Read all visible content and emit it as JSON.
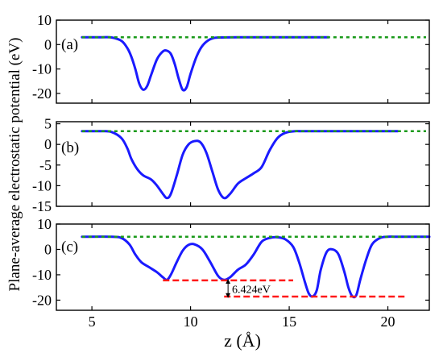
{
  "chart_data": {
    "type": "line",
    "shared_xlabel": "z (Å)",
    "shared_ylabel": "Plane-average electrostatic potential (eV)",
    "xlim": [
      3.2,
      22.1
    ],
    "xticks": [
      5,
      10,
      15,
      20
    ],
    "xtick_labels": [
      "5",
      "10",
      "15",
      "20"
    ],
    "colors": {
      "curve": "#1a1aff",
      "vacuum_level": "#1a9a1a",
      "reference_lines": "#ff1a1a"
    },
    "panels": [
      {
        "label": "(a)",
        "ylim": [
          -24,
          10
        ],
        "yticks": [
          10,
          0,
          -10,
          -20
        ],
        "ytick_labels": [
          "10",
          "0",
          "-10",
          "-20"
        ],
        "vacuum_level": 3.0,
        "series": {
          "x": [
            4.5,
            5.5,
            6.0,
            6.5,
            6.8,
            7.0,
            7.2,
            7.4,
            7.6,
            7.8,
            8.0,
            8.3,
            8.6,
            8.8,
            9.0,
            9.2,
            9.4,
            9.6,
            9.8,
            10.0,
            10.3,
            10.6,
            11.0,
            11.5,
            13.0,
            17.0
          ],
          "y": [
            3.0,
            3.0,
            2.9,
            1.5,
            -1.5,
            -5.0,
            -10.0,
            -16.0,
            -18.5,
            -17.0,
            -12.5,
            -6.0,
            -2.8,
            -2.5,
            -3.8,
            -8.0,
            -14.0,
            -18.5,
            -17.5,
            -12.0,
            -5.0,
            -0.5,
            2.2,
            2.9,
            3.0,
            3.0
          ]
        },
        "annotations": []
      },
      {
        "label": "(b)",
        "ylim": [
          -15,
          5.5
        ],
        "yticks": [
          5,
          0,
          -5,
          -10,
          -15
        ],
        "ytick_labels": [
          "5",
          "0",
          "-5",
          "-10",
          "-15"
        ],
        "vacuum_level": 3.2,
        "series": {
          "x": [
            4.5,
            5.5,
            6.0,
            6.5,
            6.8,
            7.0,
            7.3,
            7.6,
            8.0,
            8.3,
            8.6,
            8.8,
            9.0,
            9.3,
            9.6,
            9.9,
            10.2,
            10.5,
            10.8,
            11.1,
            11.4,
            11.7,
            12.0,
            12.4,
            12.8,
            13.2,
            13.6,
            14.0,
            14.4,
            14.8,
            15.3,
            16.0,
            20.5
          ],
          "y": [
            3.2,
            3.2,
            3.0,
            1.5,
            -1.0,
            -3.5,
            -6.0,
            -7.5,
            -8.5,
            -10.0,
            -12.0,
            -13.0,
            -12.0,
            -7.5,
            -2.5,
            0.0,
            0.8,
            0.5,
            -2.0,
            -6.5,
            -11.0,
            -13.0,
            -12.0,
            -9.5,
            -8.2,
            -7.0,
            -5.5,
            -1.5,
            1.5,
            2.8,
            3.2,
            3.2,
            3.2
          ]
        },
        "annotations": []
      },
      {
        "label": "(c)",
        "ylim": [
          -24,
          10
        ],
        "yticks": [
          10,
          0,
          -10,
          -20
        ],
        "ytick_labels": [
          "10",
          "0",
          "-10",
          "-20"
        ],
        "vacuum_level": 5.0,
        "series": {
          "x": [
            4.5,
            6.0,
            6.5,
            6.9,
            7.2,
            7.5,
            7.9,
            8.3,
            8.6,
            8.8,
            9.0,
            9.3,
            9.6,
            9.9,
            10.2,
            10.6,
            11.0,
            11.4,
            11.7,
            12.0,
            12.4,
            12.8,
            13.2,
            13.6,
            14.0,
            14.4,
            14.8,
            15.2,
            15.5,
            15.8,
            16.0,
            16.2,
            16.4,
            16.6,
            16.9,
            17.2,
            17.5,
            17.8,
            18.0,
            18.2,
            18.4,
            18.6,
            18.9,
            19.2,
            19.6,
            20.0,
            20.5,
            22.1
          ],
          "y": [
            5.0,
            5.0,
            4.5,
            2.0,
            -2.0,
            -5.0,
            -7.0,
            -9.0,
            -11.0,
            -12.0,
            -10.0,
            -5.0,
            -0.5,
            1.8,
            2.0,
            0.0,
            -5.0,
            -10.5,
            -12.0,
            -11.0,
            -8.0,
            -6.0,
            -2.0,
            3.0,
            4.5,
            4.8,
            4.0,
            1.0,
            -5.0,
            -13.0,
            -17.5,
            -18.5,
            -16.0,
            -8.0,
            -1.0,
            0.0,
            -2.0,
            -9.0,
            -15.0,
            -18.5,
            -18.0,
            -12.0,
            -4.0,
            2.0,
            4.5,
            5.0,
            5.0,
            5.0
          ]
        },
        "annotations": [
          {
            "type": "hline",
            "y": -12.2,
            "x": [
              8.6,
              15.2
            ]
          },
          {
            "type": "hline",
            "y": -18.6,
            "x": [
              11.7,
              21.0
            ]
          },
          {
            "type": "arrow",
            "x": 11.9,
            "y": [
              -12.6,
              -18.2
            ]
          },
          {
            "type": "text",
            "text": "6.424eV",
            "x": 12.1,
            "y": -15.6
          }
        ]
      }
    ]
  }
}
